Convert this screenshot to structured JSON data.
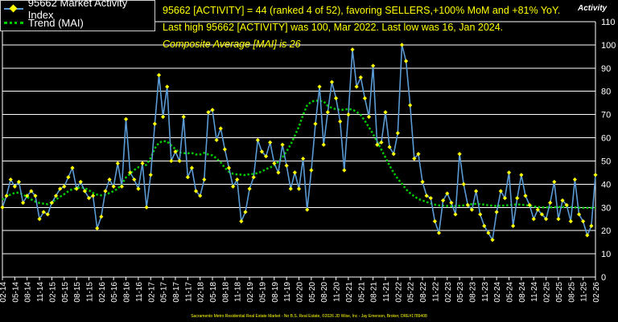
{
  "legend": {
    "series_label": "95662 Market Activity Index",
    "trend_label": "Trend (MAI)"
  },
  "annotations": {
    "line1": "95662 [ACTIVITY] = 44 (ranked 4 of 52), favoring SELLERS,+100% MoM and +81% YoY.",
    "line2": "Last high 95662 [ACTIVITY] was 100, Mar 2022. Last low was 16, Jan 2024.",
    "line3": "Composite Average [MAI] is 26"
  },
  "footer": "Sacramento Metro Residential Real Estate Market - No B.S. Real Estate, ©2026 JD Wise, Inc - Jay Emerson, Broker, DRE#1789408",
  "colors": {
    "background": "#000000",
    "series_line": "#5b9bd5",
    "series_marker": "#ffff00",
    "trend": "#00cc00",
    "grid": "#ffffff",
    "text": "#ffffff",
    "annotation": "#ffff00"
  },
  "chart_data": {
    "type": "line",
    "ylabel": "Activity",
    "ylim": [
      0,
      110
    ],
    "yticks": [
      0,
      10,
      20,
      30,
      40,
      50,
      60,
      70,
      80,
      90,
      100,
      110
    ],
    "grid": true,
    "legend_position": "top-left",
    "x_tick_labels": [
      "02-14",
      "05-14",
      "08-14",
      "11-14",
      "02-15",
      "05-15",
      "08-15",
      "11-15",
      "02-16",
      "05-16",
      "08-16",
      "11-16",
      "02-17",
      "05-17",
      "08-17",
      "11-17",
      "02-18",
      "05-18",
      "08-18",
      "11-18",
      "02-19",
      "05-19",
      "08-19",
      "11-19",
      "02-20",
      "05-20",
      "08-20",
      "11-20",
      "02-21",
      "05-21",
      "08-21",
      "11-21",
      "02-22",
      "05-22",
      "08-22",
      "11-22",
      "02-23",
      "05-23",
      "08-23",
      "11-23",
      "02-24",
      "05-24",
      "08-24",
      "11-24",
      "02-25",
      "05-25",
      "08-25",
      "11-25",
      "02-26"
    ],
    "series": [
      {
        "name": "95662 Market Activity Index",
        "values": [
          30,
          35,
          42,
          39,
          41,
          32,
          35,
          37,
          35,
          25,
          28,
          27,
          32,
          35,
          38,
          39,
          43,
          47,
          38,
          41,
          37,
          34,
          35,
          21,
          26,
          37,
          42,
          39,
          49,
          39,
          68,
          45,
          42,
          38,
          49,
          30,
          44,
          66,
          87,
          69,
          82,
          50,
          54,
          50,
          69,
          43,
          47,
          37,
          35,
          42,
          71,
          72,
          59,
          64,
          55,
          47,
          39,
          42,
          24,
          28,
          38,
          43,
          59,
          54,
          52,
          58,
          49,
          45,
          57,
          48,
          38,
          45,
          38,
          51,
          29,
          46,
          66,
          82,
          57,
          71,
          84,
          77,
          67,
          46,
          70,
          98,
          82,
          86,
          77,
          69,
          91,
          57,
          58,
          71,
          56,
          53,
          62,
          100,
          93,
          74,
          51,
          53,
          41,
          35,
          34,
          24,
          19,
          33,
          36,
          32,
          27,
          53,
          40,
          31,
          29,
          37,
          27,
          22,
          19,
          16,
          28,
          37,
          34,
          45,
          22,
          34,
          44,
          35,
          31,
          25,
          29,
          27,
          25,
          32,
          41,
          25,
          33,
          31,
          24,
          42,
          27,
          24,
          18,
          22,
          44
        ]
      },
      {
        "name": "Trend (MAI)",
        "values": [
          33.3,
          34.9,
          35.5,
          36.3,
          36.4,
          35.5,
          34.5,
          33.4,
          32.5,
          31.9,
          31.6,
          31.4,
          32.2,
          33.4,
          34.6,
          35.7,
          36.9,
          37.9,
          38.2,
          38.7,
          38.3,
          37.4,
          36.2,
          35.5,
          35.2,
          35.5,
          36.2,
          37.0,
          38.0,
          40.0,
          42.9,
          44.4,
          46.1,
          47.3,
          47.5,
          48.4,
          51.3,
          55.5,
          57.8,
          58.6,
          58.4,
          56.7,
          55.1,
          53.6,
          53.4,
          53.3,
          53.4,
          52.8,
          52.8,
          53.5,
          52.8,
          52.4,
          51.1,
          49.4,
          47.1,
          45.3,
          44.5,
          44.2,
          44.1,
          43.9,
          44.3,
          44.4,
          44.8,
          45.5,
          46.5,
          47.2,
          48.0,
          49.7,
          51.6,
          54.1,
          57.1,
          60.9,
          64.8,
          69.8,
          74.0,
          75.5,
          76.0,
          75.9,
          75.7,
          73.8,
          72.8,
          72.3,
          72.0,
          72.1,
          72.4,
          72.1,
          71.2,
          69.8,
          67.3,
          64.5,
          61.6,
          58.3,
          54.9,
          51.5,
          48.0,
          45.0,
          42.3,
          40.2,
          37.8,
          36.1,
          34.8,
          33.6,
          33.0,
          32.3,
          31.7,
          31.2,
          30.9,
          30.7,
          30.6,
          30.5,
          30.6,
          30.7,
          30.9,
          31.2,
          31.4,
          31.5,
          31.4,
          31.2,
          30.9,
          30.7,
          30.6,
          30.7,
          30.8,
          31.0,
          31.2,
          31.3,
          31.2,
          31.0,
          30.7,
          30.4,
          30.2,
          30.0,
          30.0,
          30.0,
          30.1,
          30.2,
          30.2,
          30.2,
          30.1,
          30.0,
          29.9,
          29.8,
          29.8,
          29.8,
          29.8
        ]
      }
    ]
  }
}
